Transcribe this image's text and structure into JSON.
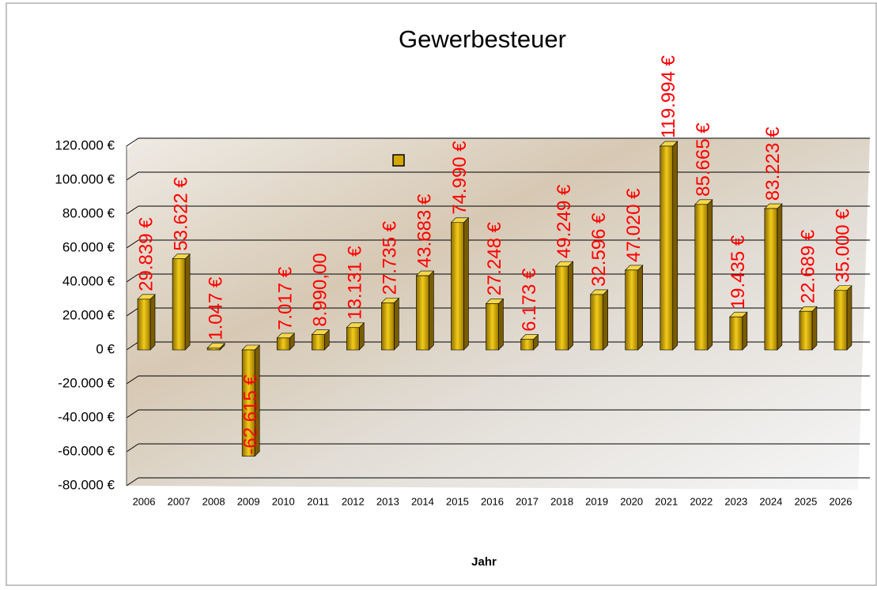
{
  "chart_data": {
    "type": "bar",
    "title": "Gewerbesteuer",
    "x_label": "Jahr",
    "categories": [
      "2006",
      "2007",
      "2008",
      "2009",
      "2010",
      "2011",
      "2012",
      "2013",
      "2014",
      "2015",
      "2016",
      "2017",
      "2018",
      "2019",
      "2020",
      "2021",
      "2022",
      "2023",
      "2024",
      "2025",
      "2026"
    ],
    "values": [
      29839,
      53622,
      1047,
      -62615,
      7017,
      8990,
      13131,
      27735,
      43683,
      74990,
      27248,
      6173,
      49249,
      32596,
      47020,
      119994,
      85665,
      19435,
      83223,
      22689,
      35000
    ],
    "value_labels": [
      "29.839 €",
      "53.622 €",
      "1.047 €",
      "-62.615 €",
      "7.017 €",
      "8.990,00",
      "13.131 €",
      "27.735 €",
      "43.683 €",
      "74.990 €",
      "27.248 €",
      "6.173 €",
      "49.249 €",
      "32.596 €",
      "47.020 €",
      "119.994 €",
      "85.665 €",
      "19.435 €",
      "83.223 €",
      "22.689 €",
      "35.000 €"
    ],
    "color": "#d4a800",
    "label_color": "#ff0000",
    "ylim": [
      -80000,
      120000
    ],
    "yticks": [
      {
        "value": -80000,
        "label": "-80.000 €"
      },
      {
        "value": -60000,
        "label": "-60.000 €"
      },
      {
        "value": -40000,
        "label": "-40.000 €"
      },
      {
        "value": -20000,
        "label": "-20.000 €"
      },
      {
        "value": 0,
        "label": "0 €"
      },
      {
        "value": 20000,
        "label": "20.000 €"
      },
      {
        "value": 40000,
        "label": "40.000 €"
      },
      {
        "value": 60000,
        "label": "60.000 €"
      },
      {
        "value": 80000,
        "label": "80.000 €"
      },
      {
        "value": 100000,
        "label": "100.000 €"
      },
      {
        "value": 120000,
        "label": "120.000 €"
      }
    ],
    "grid": true
  }
}
